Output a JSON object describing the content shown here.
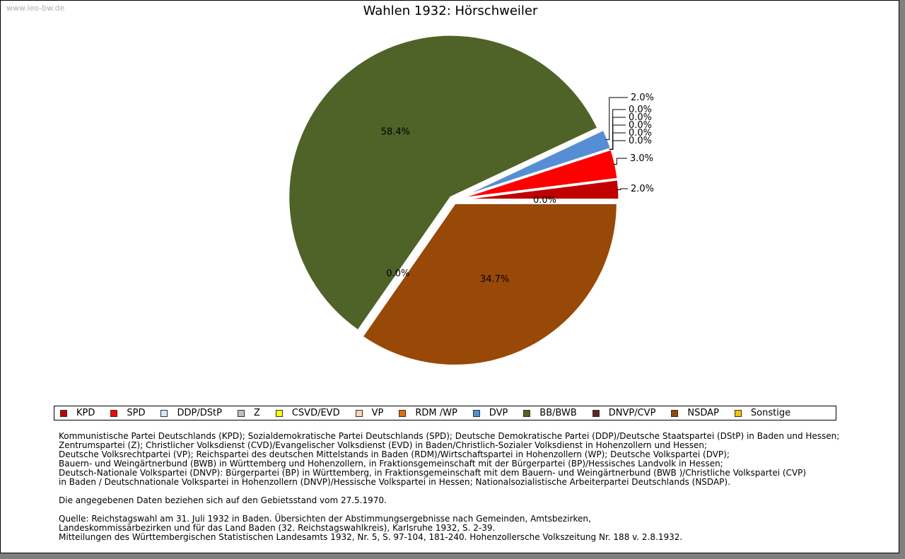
{
  "watermark": "www.leo-bw.de",
  "chart_data": {
    "type": "pie",
    "title": "Wahlen 1932: Hörschweiler",
    "slices": [
      {
        "party": "KPD",
        "value": 2.0,
        "label": "2.0%",
        "color": "#c00000"
      },
      {
        "party": "SPD",
        "value": 3.0,
        "label": "3.0%",
        "color": "#ff0000"
      },
      {
        "party": "DDP/DStP",
        "value": 0.0,
        "label": "0.0%",
        "color": "#d9e6f5"
      },
      {
        "party": "Z",
        "value": 0.0,
        "label": "0.0%",
        "color": "#bfbfbf"
      },
      {
        "party": "CSVD/EVD",
        "value": 0.0,
        "label": "0.0%",
        "color": "#ffff00"
      },
      {
        "party": "VP",
        "value": 0.0,
        "label": "0.0%",
        "color": "#fcd5b4"
      },
      {
        "party": "RDM /WP",
        "value": 0.0,
        "label": "0.0%",
        "color": "#e46c0a"
      },
      {
        "party": "DVP",
        "value": 2.0,
        "label": "2.0%",
        "color": "#558ed5"
      },
      {
        "party": "BB/BWB",
        "value": 58.4,
        "label": "58.4%",
        "color": "#4f6228"
      },
      {
        "party": "DNVP/CVP",
        "value": 0.0,
        "label": "0.0%",
        "color": "#632523"
      },
      {
        "party": "NSDAP",
        "value": 34.7,
        "label": "34.7%",
        "color": "#984807"
      },
      {
        "party": "Sonstige",
        "value": 0.0,
        "label": "0.0%",
        "color": "#ffc000"
      }
    ],
    "legend_position": "bottom"
  },
  "notes": {
    "parties": [
      "Kommunistische Partei Deutschlands (KPD); Sozialdemokratische Partei Deutschlands (SPD); Deutsche Demokratische Partei (DDP)/Deutsche Staatspartei (DStP) in Baden und Hessen;",
      "Zentrumspartei (Z); Christlicher Volksdienst (CVD)/Evangelischer Volksdienst (EVD) in Baden/Christlich-Sozialer Volksdienst in Hohenzollern und Hessen;",
      "Deutsche Volksrechtpartei (VP); Reichspartei des deutschen Mittelstands in Baden (RDM)/Wirtschaftspartei in Hohenzollern (WP); Deutsche Volkspartei (DVP);",
      "Bauern- und Weingärtnerbund (BWB) in Württemberg und Hohenzollern, in Fraktionsgemeinschaft mit der Bürgerpartei (BP)/Hessisches Landvolk in Hessen;",
      "Deutsch-Nationale Volkspartei (DNVP): Bürgerpartei (BP) in Württemberg, in Fraktionsgemeinschaft mit dem Bauern- und Weingärtnerbund (BWB )/Christliche Volkspartei (CVP)",
      "in Baden / Deutschnationale Volkspartei in Hohenzollern (DNVP)/Hessische Volkspartei in Hessen; Nationalsozialistische Arbeiterpartei Deutschlands (NSDAP)."
    ],
    "territory": "Die angegebenen Daten beziehen sich auf den Gebietsstand vom 27.5.1970.",
    "source": [
      "Quelle: Reichstagswahl am 31. Juli 1932 in Baden. Übersichten der Abstimmungsergebnisse nach Gemeinden, Amtsbezirken,",
      "Landeskommissärbezirken und für das Land Baden (32. Reichstagswahlkreis), Karlsruhe 1932, S. 2-39.",
      "Mitteilungen des Württembergischen Statistischen Landesamts 1932, Nr. 5, S. 97-104, 181-240. Hohenzollersche Volkszeitung Nr. 188 v. 2.8.1932."
    ]
  }
}
